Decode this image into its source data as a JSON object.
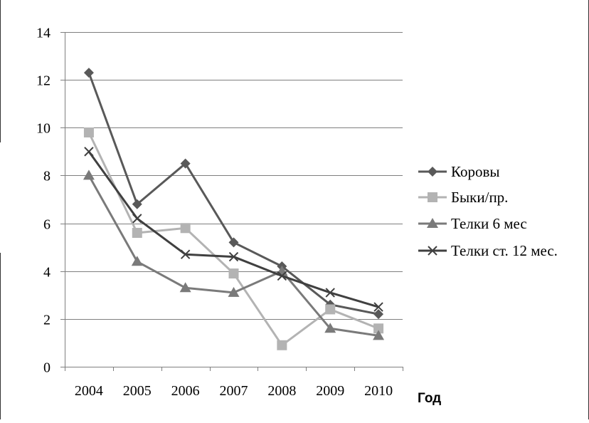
{
  "chart_data": {
    "type": "line",
    "title": "",
    "xlabel": "Год",
    "ylabel": "",
    "categories": [
      "2004",
      "2005",
      "2006",
      "2007",
      "2008",
      "2009",
      "2010"
    ],
    "ylim": [
      0,
      14
    ],
    "yticks": [
      0,
      2,
      4,
      6,
      8,
      10,
      12,
      14
    ],
    "grid": true,
    "legend_position": "right",
    "series": [
      {
        "name": "Коровы",
        "values": [
          12.3,
          6.8,
          8.5,
          5.2,
          4.2,
          2.6,
          2.2
        ],
        "color": "#595959",
        "marker": "diamond"
      },
      {
        "name": "Быки/пр.",
        "values": [
          9.8,
          5.6,
          5.8,
          3.9,
          0.9,
          2.4,
          1.6
        ],
        "color": "#b3b3b3",
        "marker": "square"
      },
      {
        "name": "Телки 6 мес",
        "values": [
          8.0,
          4.4,
          3.3,
          3.1,
          4.0,
          1.6,
          1.3
        ],
        "color": "#7a7a7a",
        "marker": "triangle"
      },
      {
        "name": "Телки ст. 12 мес.",
        "values": [
          9.0,
          6.2,
          4.7,
          4.6,
          3.8,
          3.1,
          2.5
        ],
        "color": "#404040",
        "marker": "x"
      }
    ]
  }
}
